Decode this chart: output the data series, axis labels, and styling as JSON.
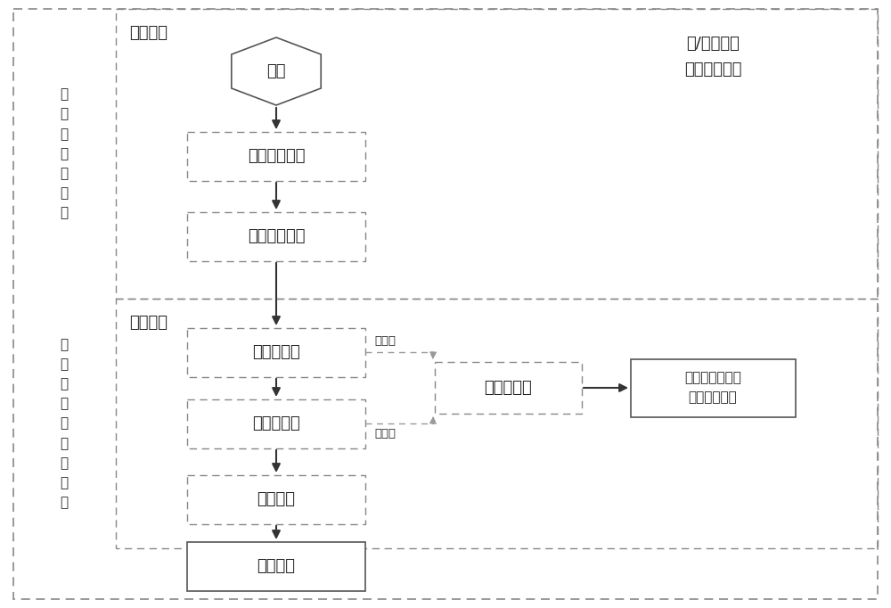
{
  "bg_color": "#ffffff",
  "text_color": "#222222",
  "border_color": "#777777",
  "dash_color": "#999999",
  "arrow_color": "#333333",
  "label_jiliang": "计\n量\n自\n动\n化\n系\n统",
  "label_wangji": "网\n级\n电\n能\n量\n数\n据\n平\n台",
  "label_wenjian_shangchuan": "文件上传",
  "label_wenjian_chuli": "文件处理",
  "label_ri_yue": "日/月在线率\n文件正常上传",
  "node_kaishi": "开始",
  "node_zidong_shengcheng": "自动生成文件",
  "node_zidong_shangchuan": "自动上传文件",
  "node_jiancha_wanzhenxing": "检查完整性",
  "node_jiancha_shujuxiang": "检查数据项",
  "node_shuju_ruku": "数据入库",
  "node_shuju_fabu": "数据发布",
  "node_shengcheng_wentidan": "生成问题单",
  "node_jilu_wenjian": "记录文件处理日\n志、转移文件",
  "label_bu_tongguo1": "不通过",
  "label_bu_tongguo2": "不通过"
}
